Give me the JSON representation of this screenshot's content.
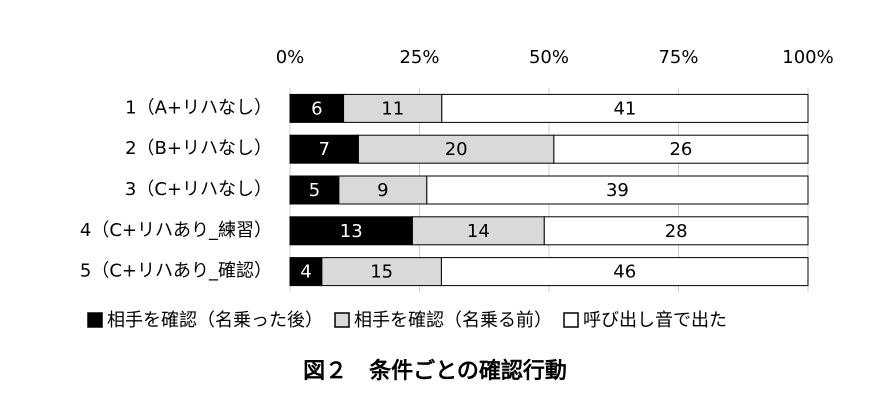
{
  "chart_data": {
    "type": "bar",
    "orientation": "horizontal",
    "stack": "percent",
    "title": "図２　条件ごとの確認行動",
    "categories": [
      "1（A+リハなし）",
      "2（B+リハなし）",
      "3（C+リハなし）",
      "4（C+リハあり_練習）",
      "5（C+リハあり_確認）"
    ],
    "series": [
      {
        "name": "相手を確認（名乗った後）",
        "color": "#000000",
        "label_color": "#ffffff",
        "values": [
          6,
          7,
          5,
          13,
          4
        ]
      },
      {
        "name": "相手を確認（名乗る前）",
        "color": "#d9d9d9",
        "label_color": "#000000",
        "values": [
          11,
          20,
          9,
          14,
          15
        ]
      },
      {
        "name": "呼び出し音で出た",
        "color": "#ffffff",
        "label_color": "#000000",
        "values": [
          41,
          26,
          39,
          28,
          46
        ]
      }
    ],
    "xlim": [
      0,
      100
    ],
    "xticks": [
      {
        "value": 0,
        "label": "0%"
      },
      {
        "value": 25,
        "label": "25%"
      },
      {
        "value": 50,
        "label": "50%"
      },
      {
        "value": 75,
        "label": "75%"
      },
      {
        "value": 100,
        "label": "100%"
      }
    ],
    "grid": true,
    "legend": "bottom"
  }
}
